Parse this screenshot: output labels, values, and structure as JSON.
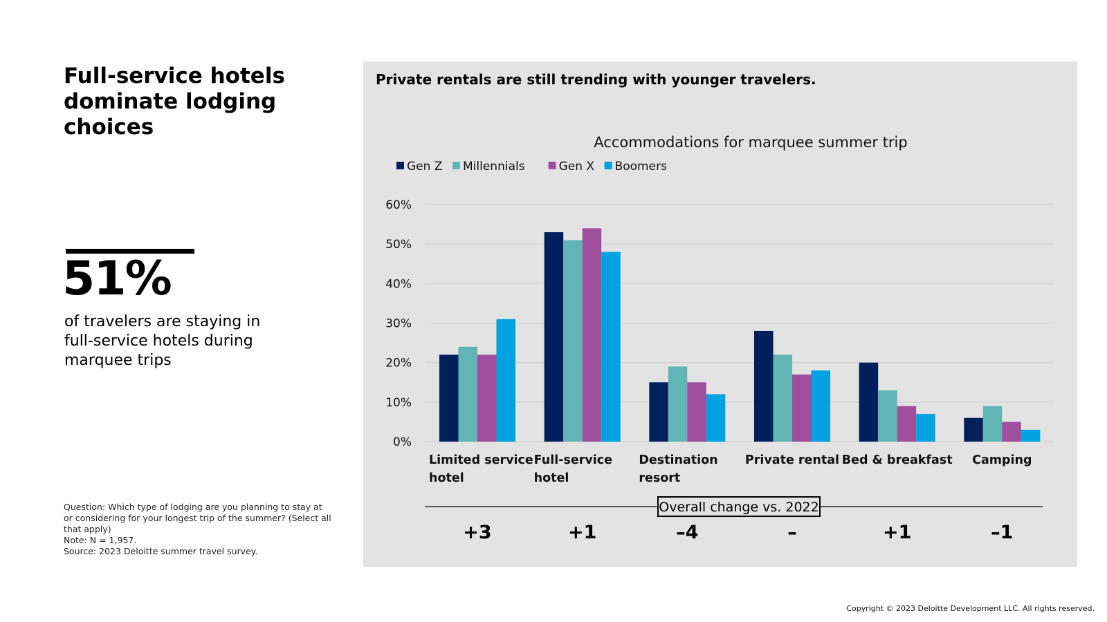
{
  "headline": "Full-service hotels dominate lodging choices",
  "stat": {
    "value": "51%",
    "caption": "of travelers are staying in full-service hotels during marquee trips"
  },
  "notes": {
    "question": "Question: Which type of lodging are you planning to stay at or considering for your longest trip of the summer? (Select all that apply)",
    "note": "Note: N = 1,957.",
    "source": "Source: 2023 Deloitte summer travel survey."
  },
  "copyright": "Copyright © 2023 Deloitte Development LLC. All rights reserved.",
  "panel": {
    "title": "Private rentals are still trending with younger travelers."
  },
  "colors": {
    "gen_z": "#00205b",
    "millennials": "#62b5b5",
    "gen_x": "#a04f9e",
    "boomers": "#00a2df",
    "panel_bg": "#e3e3e3",
    "gridline": "#cfcfcf"
  },
  "chart_data": {
    "type": "bar",
    "title": "Accommodations for marquee summer trip",
    "categories": [
      [
        "Limited service",
        "hotel"
      ],
      [
        "Full-service",
        "hotel"
      ],
      [
        "Destination",
        "resort"
      ],
      [
        "Private rental"
      ],
      [
        "Bed & breakfast"
      ],
      [
        "Camping"
      ]
    ],
    "series": [
      {
        "name": "Gen Z",
        "color": "#00205b",
        "values": [
          22,
          53,
          15,
          28,
          20,
          6
        ]
      },
      {
        "name": "Millennials",
        "color": "#62b5b5",
        "values": [
          24,
          51,
          19,
          22,
          13,
          9
        ]
      },
      {
        "name": "Gen X",
        "color": "#a04f9e",
        "values": [
          22,
          54,
          15,
          17,
          9,
          5
        ]
      },
      {
        "name": "Boomers",
        "color": "#00a2df",
        "values": [
          31,
          48,
          12,
          18,
          7,
          3
        ]
      }
    ],
    "ylim": [
      0,
      60
    ],
    "yticks": [
      0,
      10,
      20,
      30,
      40,
      50,
      60
    ],
    "ytick_labels": [
      "0%",
      "10%",
      "20%",
      "30%",
      "40%",
      "50%",
      "60%"
    ],
    "xlabel": "",
    "ylabel": "",
    "legend": "top-left",
    "grid": true,
    "change_label": "Overall change vs. 2022",
    "changes": [
      "+3",
      "+1",
      "–4",
      "–",
      "+1",
      "–1"
    ]
  }
}
